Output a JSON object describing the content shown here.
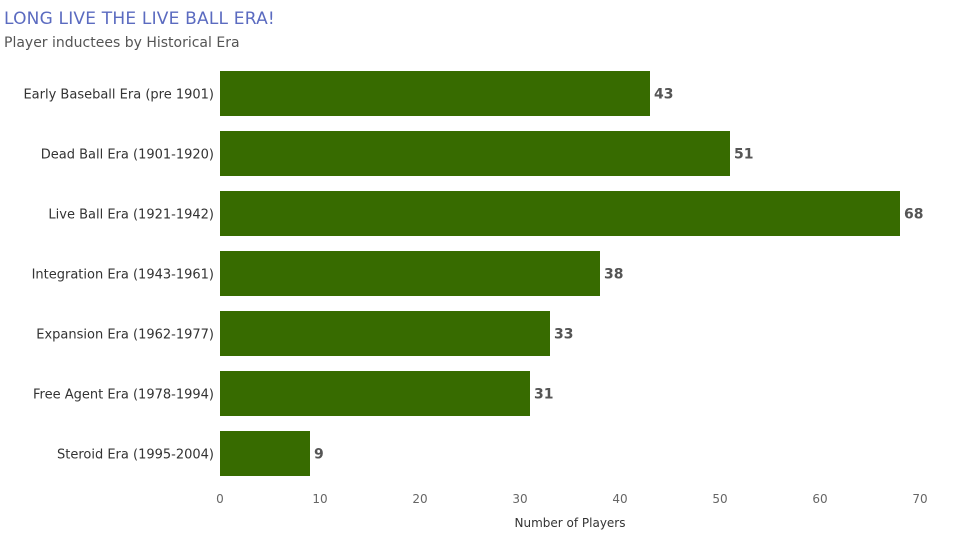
{
  "chart_data": {
    "type": "bar",
    "orientation": "horizontal",
    "title": "LONG LIVE THE LIVE BALL ERA!",
    "subtitle": "Player inductees by Historical Era",
    "xlabel": "Number of Players",
    "ylabel": "",
    "xlim": [
      0,
      70
    ],
    "xticks": [
      0,
      10,
      20,
      30,
      40,
      50,
      60,
      70
    ],
    "categories": [
      "Early Baseball Era (pre 1901)",
      "Dead Ball Era (1901-1920)",
      "Live Ball Era (1921-1942)",
      "Integration Era (1943-1961)",
      "Expansion Era (1962-1977)",
      "Free Agent Era (1978-1994)",
      "Steroid Era (1995-2004)"
    ],
    "values": [
      43,
      51,
      68,
      38,
      33,
      31,
      9
    ],
    "bar_color": "#376b00",
    "grid": false,
    "legend": "none"
  }
}
